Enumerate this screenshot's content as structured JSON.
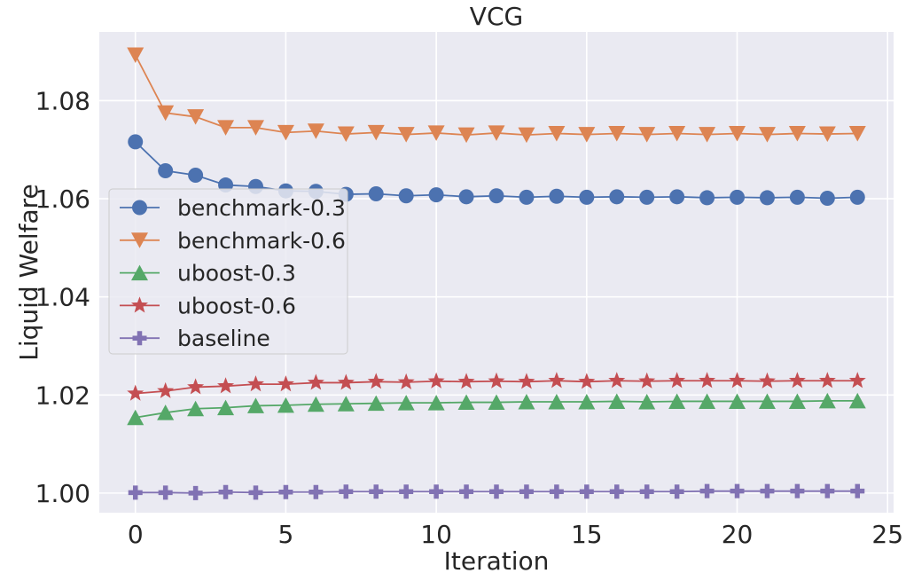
{
  "chart_data": {
    "type": "line",
    "title": "VCG",
    "xlabel": "Iteration",
    "ylabel": "Liquid Welfare",
    "xlim": [
      -1.2,
      25.2
    ],
    "ylim": [
      0.996,
      1.094
    ],
    "xticks": [
      0,
      5,
      10,
      15,
      20,
      25
    ],
    "xtick_labels": [
      "0",
      "5",
      "10",
      "15",
      "20",
      "25"
    ],
    "yticks": [
      1.0,
      1.02,
      1.04,
      1.06,
      1.08
    ],
    "ytick_labels": [
      "1.00",
      "1.02",
      "1.04",
      "1.06",
      "1.08"
    ],
    "grid": true,
    "legend_position": "center-left",
    "x": [
      0,
      1,
      2,
      3,
      4,
      5,
      6,
      7,
      8,
      9,
      10,
      11,
      12,
      13,
      14,
      15,
      16,
      17,
      18,
      19,
      20,
      21,
      22,
      23,
      24
    ],
    "series": [
      {
        "name": "benchmark-0.3",
        "color": "#4c72b0",
        "marker": "circle",
        "values": [
          1.0716,
          1.0657,
          1.0648,
          1.0628,
          1.0625,
          1.0616,
          1.0615,
          1.0609,
          1.061,
          1.0606,
          1.0608,
          1.0604,
          1.0606,
          1.0603,
          1.0605,
          1.0603,
          1.0604,
          1.0603,
          1.0604,
          1.0602,
          1.0603,
          1.0602,
          1.0603,
          1.0601,
          1.0603
        ]
      },
      {
        "name": "benchmark-0.6",
        "color": "#dd8452",
        "marker": "triangle-down",
        "values": [
          1.0893,
          1.0775,
          1.0767,
          1.0745,
          1.0745,
          1.0735,
          1.0738,
          1.0732,
          1.0735,
          1.0731,
          1.0734,
          1.073,
          1.0734,
          1.073,
          1.0733,
          1.0731,
          1.0733,
          1.0731,
          1.0733,
          1.0731,
          1.0733,
          1.0731,
          1.0733,
          1.0732,
          1.0733
        ]
      },
      {
        "name": "uboost-0.3",
        "color": "#55a868",
        "marker": "triangle-up",
        "values": [
          1.0154,
          1.0164,
          1.0172,
          1.0174,
          1.0178,
          1.0179,
          1.0181,
          1.0182,
          1.0183,
          1.0184,
          1.0184,
          1.0185,
          1.0185,
          1.0186,
          1.0186,
          1.0186,
          1.0187,
          1.0186,
          1.0187,
          1.0187,
          1.0187,
          1.0187,
          1.0187,
          1.0188,
          1.0188
        ]
      },
      {
        "name": "uboost-0.6",
        "color": "#c44e52",
        "marker": "star",
        "values": [
          1.0203,
          1.0208,
          1.0216,
          1.0218,
          1.0222,
          1.0222,
          1.0225,
          1.0225,
          1.0227,
          1.0226,
          1.0228,
          1.0227,
          1.0228,
          1.0227,
          1.0229,
          1.0227,
          1.0229,
          1.0228,
          1.0229,
          1.0229,
          1.0229,
          1.0228,
          1.0229,
          1.0229,
          1.0229
        ]
      },
      {
        "name": "baseline",
        "color": "#8172b3",
        "marker": "plus",
        "values": [
          1.0001,
          1.0001,
          1.0,
          1.0002,
          1.0001,
          1.0002,
          1.0002,
          1.0003,
          1.0003,
          1.0003,
          1.0003,
          1.0003,
          1.0003,
          1.0003,
          1.0003,
          1.0003,
          1.0003,
          1.0003,
          1.0003,
          1.0004,
          1.0004,
          1.0004,
          1.0004,
          1.0004,
          1.0004
        ]
      }
    ]
  }
}
